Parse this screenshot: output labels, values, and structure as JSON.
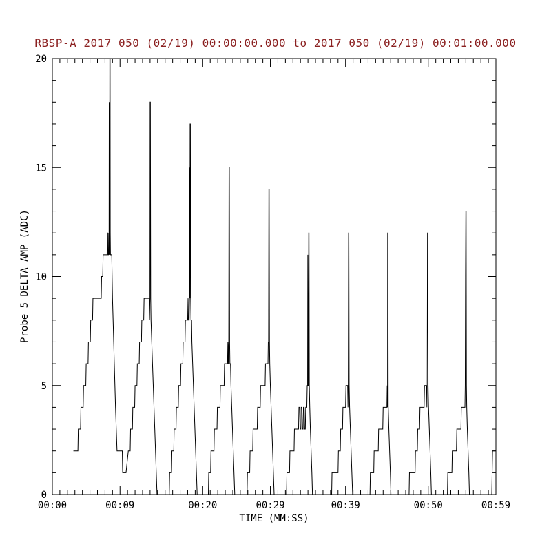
{
  "chart_data": {
    "type": "line",
    "title": "RBSP-A 2017 050 (02/19) 00:00:00.000 to 2017 050 (02/19) 00:01:00.000",
    "title_color": "#8b2020",
    "xlabel": "TIME (MM:SS)",
    "ylabel": "Probe 5 DELTA AMP (ADC)",
    "xlim": [
      0,
      59
    ],
    "ylim": [
      0,
      20
    ],
    "x_major_ticks": [
      {
        "value": 0,
        "label": "00:00"
      },
      {
        "value": 9,
        "label": "00:09"
      },
      {
        "value": 20,
        "label": "00:20"
      },
      {
        "value": 29,
        "label": "00:29"
      },
      {
        "value": 39,
        "label": "00:39"
      },
      {
        "value": 50,
        "label": "00:50"
      },
      {
        "value": 59,
        "label": "00:59"
      }
    ],
    "x_minor_step": 1,
    "y_major_ticks": [
      0,
      5,
      10,
      15,
      20
    ],
    "y_minor_step": 1,
    "line_color": "#000000",
    "grid": false,
    "legend": "none",
    "series": [
      {
        "name": "Probe 5 DELTA AMP",
        "points": [
          [
            2.8,
            2
          ],
          [
            3.4,
            2
          ],
          [
            3.45,
            3
          ],
          [
            3.75,
            3
          ],
          [
            3.8,
            4
          ],
          [
            4.1,
            4
          ],
          [
            4.15,
            5
          ],
          [
            4.45,
            5
          ],
          [
            4.5,
            6
          ],
          [
            4.75,
            6
          ],
          [
            4.8,
            7
          ],
          [
            5.05,
            7
          ],
          [
            5.1,
            8
          ],
          [
            5.35,
            8
          ],
          [
            5.4,
            9
          ],
          [
            6.5,
            9
          ],
          [
            6.55,
            10
          ],
          [
            6.7,
            10
          ],
          [
            6.75,
            11
          ],
          [
            7.28,
            11
          ],
          [
            7.3,
            12
          ],
          [
            7.36,
            12
          ],
          [
            7.38,
            11
          ],
          [
            7.46,
            11
          ],
          [
            7.5,
            12
          ],
          [
            7.54,
            11
          ],
          [
            7.56,
            18
          ],
          [
            7.6,
            11
          ],
          [
            7.62,
            12
          ],
          [
            7.64,
            20
          ],
          [
            7.68,
            20
          ],
          [
            7.7,
            12
          ],
          [
            7.73,
            11
          ],
          [
            7.9,
            11
          ],
          [
            7.95,
            10
          ],
          [
            8.0,
            9
          ],
          [
            8.08,
            8
          ],
          [
            8.16,
            7
          ],
          [
            8.24,
            6
          ],
          [
            8.32,
            5
          ],
          [
            8.4,
            4
          ],
          [
            8.5,
            3
          ],
          [
            8.6,
            2
          ],
          [
            9.3,
            2
          ],
          [
            9.35,
            1
          ],
          [
            9.75,
            1
          ],
          [
            9.8,
            1
          ],
          [
            10.1,
            2
          ],
          [
            10.35,
            2
          ],
          [
            10.4,
            3
          ],
          [
            10.65,
            3
          ],
          [
            10.7,
            4
          ],
          [
            10.95,
            4
          ],
          [
            11.0,
            5
          ],
          [
            11.25,
            5
          ],
          [
            11.3,
            6
          ],
          [
            11.55,
            6
          ],
          [
            11.6,
            7
          ],
          [
            11.85,
            7
          ],
          [
            11.9,
            8
          ],
          [
            12.15,
            8
          ],
          [
            12.2,
            9
          ],
          [
            12.88,
            9
          ],
          [
            12.92,
            8
          ],
          [
            12.98,
            9
          ],
          [
            13.0,
            18
          ],
          [
            13.04,
            18
          ],
          [
            13.08,
            9
          ],
          [
            13.12,
            8
          ],
          [
            13.22,
            7
          ],
          [
            13.32,
            6
          ],
          [
            13.42,
            5
          ],
          [
            13.52,
            4
          ],
          [
            13.62,
            3
          ],
          [
            13.72,
            2
          ],
          [
            13.82,
            1
          ],
          [
            13.92,
            0
          ],
          [
            15.55,
            0
          ],
          [
            15.6,
            1
          ],
          [
            15.85,
            1
          ],
          [
            15.9,
            2
          ],
          [
            16.15,
            2
          ],
          [
            16.2,
            3
          ],
          [
            16.45,
            3
          ],
          [
            16.5,
            4
          ],
          [
            16.75,
            4
          ],
          [
            16.8,
            5
          ],
          [
            17.05,
            5
          ],
          [
            17.1,
            6
          ],
          [
            17.35,
            6
          ],
          [
            17.4,
            7
          ],
          [
            17.65,
            7
          ],
          [
            17.7,
            8
          ],
          [
            18.0,
            8
          ],
          [
            18.05,
            9
          ],
          [
            18.1,
            8
          ],
          [
            18.2,
            8
          ],
          [
            18.24,
            9
          ],
          [
            18.28,
            15
          ],
          [
            18.3,
            9
          ],
          [
            18.32,
            17
          ],
          [
            18.36,
            17
          ],
          [
            18.4,
            9
          ],
          [
            18.44,
            8
          ],
          [
            18.52,
            8
          ],
          [
            18.56,
            7
          ],
          [
            18.66,
            6
          ],
          [
            18.76,
            5
          ],
          [
            18.86,
            4
          ],
          [
            18.96,
            3
          ],
          [
            19.06,
            2
          ],
          [
            19.16,
            1
          ],
          [
            19.26,
            0
          ],
          [
            20.75,
            0
          ],
          [
            20.8,
            1
          ],
          [
            21.05,
            1
          ],
          [
            21.1,
            2
          ],
          [
            21.5,
            2
          ],
          [
            21.55,
            3
          ],
          [
            21.9,
            3
          ],
          [
            21.95,
            4
          ],
          [
            22.3,
            4
          ],
          [
            22.35,
            5
          ],
          [
            22.85,
            5
          ],
          [
            22.9,
            6
          ],
          [
            23.3,
            6
          ],
          [
            23.35,
            7
          ],
          [
            23.4,
            6
          ],
          [
            23.46,
            7
          ],
          [
            23.5,
            15
          ],
          [
            23.54,
            15
          ],
          [
            23.58,
            7
          ],
          [
            23.62,
            6
          ],
          [
            23.7,
            6
          ],
          [
            23.76,
            5
          ],
          [
            23.86,
            4
          ],
          [
            23.96,
            3
          ],
          [
            24.06,
            2
          ],
          [
            24.16,
            1
          ],
          [
            24.26,
            0
          ],
          [
            25.9,
            0
          ],
          [
            25.95,
            1
          ],
          [
            26.25,
            1
          ],
          [
            26.3,
            2
          ],
          [
            26.65,
            2
          ],
          [
            26.7,
            3
          ],
          [
            27.25,
            3
          ],
          [
            27.3,
            4
          ],
          [
            27.65,
            4
          ],
          [
            27.7,
            5
          ],
          [
            28.3,
            5
          ],
          [
            28.35,
            6
          ],
          [
            28.68,
            6
          ],
          [
            28.72,
            7
          ],
          [
            28.76,
            7
          ],
          [
            28.8,
            14
          ],
          [
            28.84,
            14
          ],
          [
            28.88,
            7
          ],
          [
            28.92,
            6
          ],
          [
            29.0,
            5
          ],
          [
            29.1,
            4
          ],
          [
            29.2,
            3
          ],
          [
            29.3,
            2
          ],
          [
            29.4,
            1
          ],
          [
            29.5,
            0
          ],
          [
            31.15,
            0
          ],
          [
            31.2,
            1
          ],
          [
            31.55,
            1
          ],
          [
            31.6,
            2
          ],
          [
            32.15,
            2
          ],
          [
            32.2,
            3
          ],
          [
            32.75,
            3
          ],
          [
            32.8,
            4
          ],
          [
            32.9,
            4
          ],
          [
            32.95,
            3
          ],
          [
            33.05,
            3
          ],
          [
            33.1,
            4
          ],
          [
            33.2,
            4
          ],
          [
            33.25,
            3
          ],
          [
            33.35,
            3
          ],
          [
            33.4,
            4
          ],
          [
            33.5,
            4
          ],
          [
            33.55,
            3
          ],
          [
            33.65,
            3
          ],
          [
            33.7,
            4
          ],
          [
            33.85,
            4
          ],
          [
            33.9,
            5
          ],
          [
            33.95,
            5
          ],
          [
            33.98,
            11
          ],
          [
            34.02,
            5
          ],
          [
            34.06,
            5
          ],
          [
            34.1,
            12
          ],
          [
            34.14,
            12
          ],
          [
            34.18,
            5
          ],
          [
            34.24,
            4
          ],
          [
            34.32,
            3
          ],
          [
            34.42,
            2
          ],
          [
            34.52,
            1
          ],
          [
            34.6,
            0
          ],
          [
            37.15,
            0
          ],
          [
            37.2,
            1
          ],
          [
            38.0,
            1
          ],
          [
            38.05,
            2
          ],
          [
            38.3,
            2
          ],
          [
            38.35,
            3
          ],
          [
            38.6,
            3
          ],
          [
            38.65,
            4
          ],
          [
            39.0,
            4
          ],
          [
            39.05,
            5
          ],
          [
            39.28,
            5
          ],
          [
            39.32,
            4
          ],
          [
            39.36,
            5
          ],
          [
            39.4,
            12
          ],
          [
            39.44,
            12
          ],
          [
            39.48,
            5
          ],
          [
            39.54,
            4
          ],
          [
            39.64,
            3
          ],
          [
            39.74,
            2
          ],
          [
            39.84,
            1
          ],
          [
            39.94,
            0
          ],
          [
            42.25,
            0
          ],
          [
            42.3,
            1
          ],
          [
            42.75,
            1
          ],
          [
            42.8,
            2
          ],
          [
            43.35,
            2
          ],
          [
            43.4,
            3
          ],
          [
            43.95,
            3
          ],
          [
            44.0,
            4
          ],
          [
            44.5,
            4
          ],
          [
            44.54,
            5
          ],
          [
            44.58,
            4
          ],
          [
            44.6,
            12
          ],
          [
            44.64,
            12
          ],
          [
            44.68,
            4
          ],
          [
            44.76,
            3
          ],
          [
            44.86,
            2
          ],
          [
            44.96,
            1
          ],
          [
            45.04,
            0
          ],
          [
            47.45,
            0
          ],
          [
            47.5,
            1
          ],
          [
            48.25,
            1
          ],
          [
            48.3,
            2
          ],
          [
            48.55,
            2
          ],
          [
            48.6,
            3
          ],
          [
            48.85,
            3
          ],
          [
            48.9,
            4
          ],
          [
            49.45,
            4
          ],
          [
            49.5,
            5
          ],
          [
            49.78,
            5
          ],
          [
            49.82,
            4
          ],
          [
            49.86,
            5
          ],
          [
            49.9,
            12
          ],
          [
            49.94,
            12
          ],
          [
            49.98,
            5
          ],
          [
            50.04,
            4
          ],
          [
            50.14,
            3
          ],
          [
            50.24,
            2
          ],
          [
            50.34,
            1
          ],
          [
            50.42,
            0
          ],
          [
            52.55,
            0
          ],
          [
            52.6,
            1
          ],
          [
            53.15,
            1
          ],
          [
            53.2,
            2
          ],
          [
            53.75,
            2
          ],
          [
            53.8,
            3
          ],
          [
            54.35,
            3
          ],
          [
            54.4,
            4
          ],
          [
            54.88,
            4
          ],
          [
            54.92,
            5
          ],
          [
            54.96,
            10
          ],
          [
            55.0,
            13
          ],
          [
            55.04,
            13
          ],
          [
            55.08,
            5
          ],
          [
            55.12,
            4
          ],
          [
            55.2,
            3
          ],
          [
            55.3,
            2
          ],
          [
            55.4,
            1
          ],
          [
            55.48,
            0
          ],
          [
            58.45,
            0
          ],
          [
            58.5,
            1
          ],
          [
            58.55,
            2
          ],
          [
            59.0,
            2
          ]
        ]
      }
    ]
  }
}
